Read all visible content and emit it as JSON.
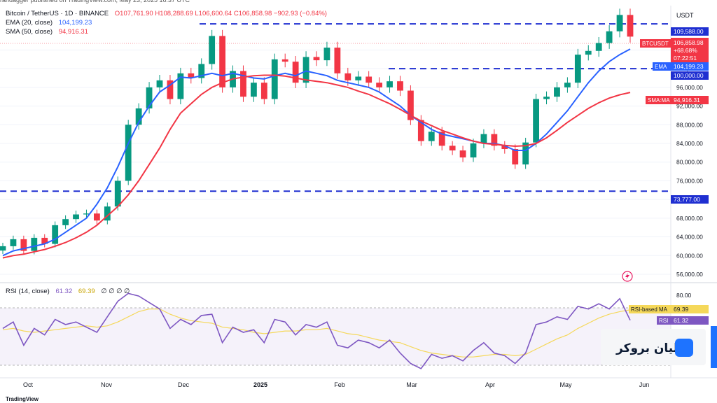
{
  "header_text": "randagger published on TradingView.com, May 23, 2025 16:37 UTC",
  "legend": {
    "symbol": "Bitcoin / TetherUS · 1D · BINANCE",
    "ohlc": "O107,761.90 H108,288.69 L106,600.64 C106,858.98 −902.93 (−0.84%)",
    "ema_label": "EMA (20, close)",
    "ema_value": "104,199.23",
    "sma_label": "SMA (50, close)",
    "sma_value": "94,916.31",
    "rsi_label": "RSI (14, close)",
    "rsi_value": "61.32",
    "rsi_ma_value": "69.39",
    "rsi_extra": "∅ ∅ ∅ ∅"
  },
  "currency": "USDT",
  "tags": {
    "price_symbol": "BTCUSDT",
    "price": "106,858.98",
    "change": "+68.68%",
    "countdown": "07:22:51",
    "ema_name": "EMA",
    "ema": "104,199.23",
    "sma_name": "SMA:MA",
    "sma": "94,916.31",
    "level_high": "109,588.00",
    "level_mid": "100,000.00",
    "level_low": "73,777.00",
    "rsi_ma_name": "RSI-based MA",
    "rsi_ma": "69.39",
    "rsi_name": "RSI",
    "rsi": "61.32"
  },
  "broker_name": "لیان بروکر",
  "footer": "TradingView",
  "colors": {
    "up": "#089981",
    "down": "#f23645",
    "ema": "#2962ff",
    "sma": "#f23645",
    "level": "#1f2fd1",
    "rsi": "#7e57c2",
    "rsi_ma": "#f5d85a"
  },
  "chart_data": [
    {
      "type": "line",
      "title": "Bitcoin / TetherUS · 1D · BINANCE",
      "x_ticks": [
        "Oct",
        "Nov",
        "Dec",
        "2025",
        "Feb",
        "Mar",
        "Apr",
        "May",
        "Jun"
      ],
      "y_ticks": [
        "56,000.00",
        "60,000.00",
        "64,000.00",
        "68,000.00",
        "72,000.00",
        "76,000.00",
        "80,000.00",
        "84,000.00",
        "88,000.00",
        "92,000.00",
        "96,000.00",
        "100,000.00",
        "104,000.00"
      ],
      "ylim": [
        54500,
        113500
      ],
      "horizontal_levels": [
        109588,
        100000,
        73777
      ],
      "series": [
        {
          "name": "Bitcoin / TetherUS",
          "values": [
            62000,
            63500,
            61000,
            63800,
            62500,
            66500,
            67800,
            68800,
            69000,
            67500,
            70500,
            76000,
            88000,
            91500,
            96000,
            97500,
            93500,
            99000,
            98000,
            101000,
            107000,
            96000,
            99500,
            94000,
            97000,
            93500,
            102000,
            101500,
            97000,
            102500,
            101800,
            104500,
            99000,
            97500,
            98300,
            97000,
            96000,
            97300,
            95300,
            89000,
            84500,
            86500,
            83500,
            82500,
            81000,
            84000,
            86000,
            83500,
            82800,
            79500,
            84200,
            93500,
            94000,
            96000,
            97000,
            103000,
            103800,
            105500,
            108000,
            111500,
            106858.98
          ]
        },
        {
          "name": "EMA (20, close)",
          "values": [
            60000,
            61000,
            61500,
            62000,
            62500,
            63500,
            65000,
            66500,
            68000,
            71000,
            74500,
            79000,
            84000,
            88500,
            92000,
            95000,
            96500,
            98200,
            98000,
            98500,
            99000,
            98500,
            99000,
            98500,
            98000,
            97800,
            98500,
            99000,
            98500,
            99500,
            99000,
            98500,
            97500,
            97000,
            96500,
            96000,
            95000,
            93500,
            92000,
            90000,
            88500,
            87000,
            86000,
            85500,
            85000,
            84500,
            84000,
            84000,
            83500,
            82500,
            82500,
            84000,
            86000,
            88500,
            91000,
            94000,
            97000,
            99500,
            101500,
            103000,
            104199.23
          ]
        },
        {
          "name": "SMA (50, close)",
          "values": [
            59500,
            60000,
            60300,
            60800,
            61300,
            62000,
            62800,
            63800,
            65000,
            66500,
            68500,
            70500,
            73000,
            76000,
            79500,
            83000,
            87000,
            90500,
            92500,
            94500,
            96000,
            97000,
            97800,
            98200,
            98500,
            98600,
            98600,
            98400,
            98000,
            97600,
            97300,
            97000,
            96500,
            96000,
            95200,
            94500,
            93500,
            92500,
            91300,
            90000,
            88800,
            87800,
            86800,
            86000,
            85200,
            84500,
            84000,
            83800,
            83600,
            83400,
            83500,
            84000,
            85200,
            86800,
            88500,
            90000,
            91500,
            92700,
            93700,
            94400,
            94916.31
          ]
        }
      ]
    },
    {
      "type": "line",
      "title": "RSI (14, close)",
      "y_ticks": [
        "80.00"
      ],
      "ylim": [
        18,
        86
      ],
      "series": [
        {
          "name": "RSI",
          "values": [
            55,
            60,
            42,
            55,
            50,
            62,
            58,
            60,
            56,
            52,
            64,
            76,
            82,
            80,
            75,
            70,
            55,
            62,
            58,
            65,
            66,
            44,
            56,
            52,
            54,
            44,
            62,
            60,
            50,
            58,
            56,
            60,
            42,
            40,
            46,
            44,
            40,
            46,
            36,
            28,
            24,
            35,
            32,
            34,
            30,
            38,
            44,
            36,
            34,
            28,
            36,
            58,
            60,
            64,
            62,
            72,
            70,
            74,
            70,
            78,
            61.32
          ]
        },
        {
          "name": "RSI-based MA",
          "values": [
            54,
            55,
            53,
            52,
            53,
            54,
            55,
            56,
            57,
            56,
            57,
            60,
            64,
            68,
            70,
            70,
            66,
            63,
            61,
            60,
            59,
            56,
            55,
            54,
            52,
            51,
            52,
            53,
            53,
            54,
            54,
            55,
            53,
            51,
            50,
            48,
            46,
            45,
            44,
            41,
            38,
            36,
            35,
            34,
            33,
            33,
            34,
            35,
            35,
            34,
            35,
            39,
            43,
            47,
            50,
            55,
            59,
            63,
            66,
            68,
            69.39
          ]
        }
      ]
    }
  ]
}
